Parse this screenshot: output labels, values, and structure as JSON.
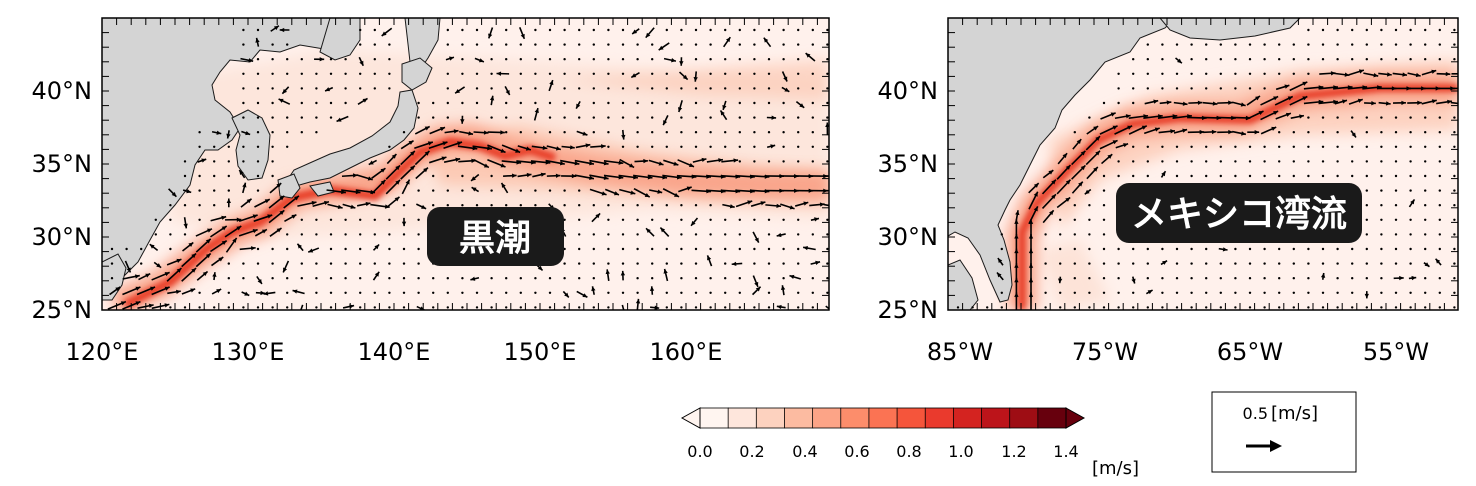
{
  "panels": [
    {
      "id": "kuroshio",
      "label": "黒潮",
      "lat_labels": [
        "40°N",
        "35°N",
        "30°N",
        "25°N"
      ],
      "lon_labels": [
        "120°E",
        "130°E",
        "140°E",
        "150°E",
        "160°E"
      ]
    },
    {
      "id": "gulfstream",
      "label": "メキシコ湾流",
      "lat_labels": [
        "40°N",
        "35°N",
        "30°N",
        "25°N"
      ],
      "lon_labels": [
        "85°W",
        "75°W",
        "65°W",
        "55°W"
      ]
    }
  ],
  "colorbar": {
    "tick_labels": [
      "0.0",
      "0.2",
      "0.4",
      "0.6",
      "0.8",
      "1.0",
      "1.2",
      "1.4"
    ],
    "unit": "[m/s]",
    "colors": [
      "#fff5f0",
      "#fee6dc",
      "#fdd2bf",
      "#fcbba1",
      "#fca487",
      "#fc8d6b",
      "#fb7353",
      "#f5553b",
      "#ea3a2d",
      "#d42320",
      "#bc141a",
      "#9e0d14",
      "#67000d"
    ]
  },
  "reference_vector": {
    "value": "0.5",
    "unit": "[m/s]"
  },
  "colors": {
    "land": "#d4d4d4",
    "ocean_base": "#fff1ec",
    "current_core": "#e8402c",
    "arrow": "#000000"
  }
}
